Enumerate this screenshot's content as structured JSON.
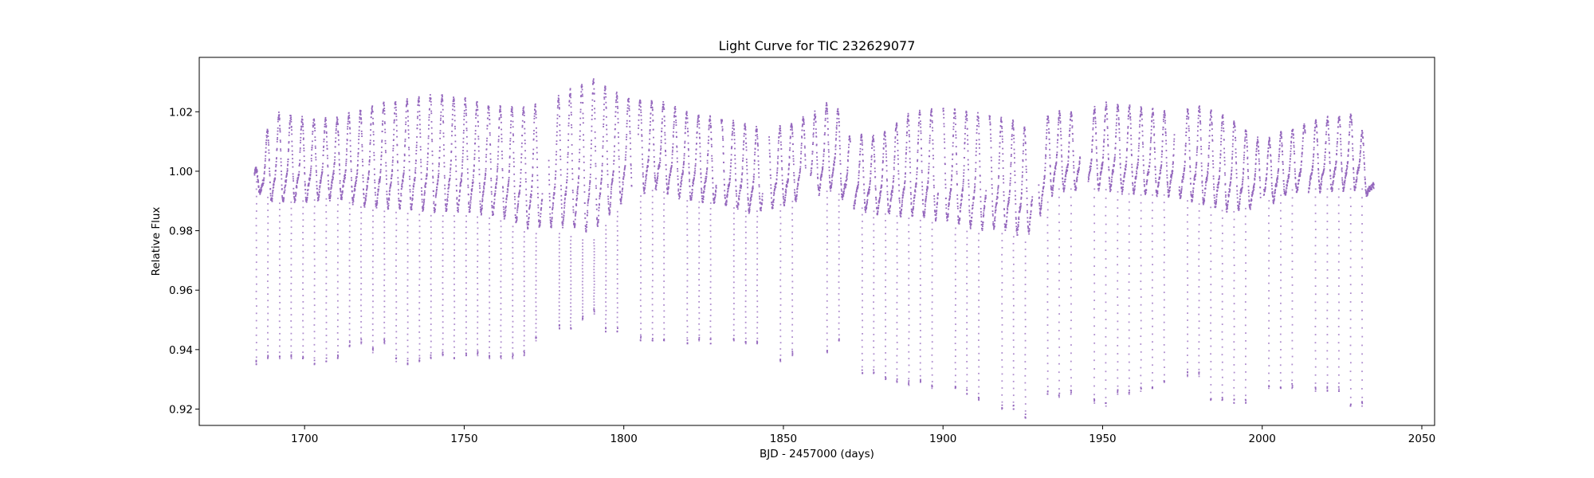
{
  "chart_data": {
    "type": "scatter",
    "title": "Light Curve for TIC 232629077",
    "xlabel": "BJD - 2457000 (days)",
    "ylabel": "Relative Flux",
    "xlim": [
      1667,
      2054
    ],
    "ylim": [
      0.9145,
      1.0383
    ],
    "xticks": [
      1700,
      1750,
      1800,
      1850,
      1900,
      1950,
      2000,
      2050
    ],
    "xtick_labels": [
      "1700",
      "1750",
      "1800",
      "1850",
      "1900",
      "1950",
      "2000",
      "2050"
    ],
    "yticks": [
      0.92,
      0.94,
      0.96,
      0.98,
      1.0,
      1.02
    ],
    "ytick_labels": [
      "0.92",
      "0.94",
      "0.96",
      "0.98",
      "1.00",
      "1.02"
    ],
    "grid": false,
    "legend": "none",
    "color": "#9467bd",
    "series": [
      {
        "x_start": 1684.3,
        "x_end": 2035.0,
        "gaps": [
          [
            1774.5,
            1776.5
          ],
          [
            1802.5,
            1804.5
          ],
          [
            1829.0,
            1830.5
          ],
          [
            1843.5,
            1845.5
          ],
          [
            1857.0,
            1858.5
          ],
          [
            1871.0,
            1872.0
          ],
          [
            1898.5,
            1900.0
          ],
          [
            1913.5,
            1914.5
          ],
          [
            1928.0,
            1930.0
          ],
          [
            1943.0,
            1945.5
          ],
          [
            1972.5,
            1974.0
          ],
          [
            1999.5,
            2000.5
          ],
          [
            2013.5,
            2014.5
          ]
        ],
        "envelope": [
          {
            "x": 1684.5,
            "max": 1.0,
            "min": 0.993
          },
          {
            "x": 1690,
            "max": 1.02,
            "min": 0.985
          },
          {
            "x": 1700,
            "max": 1.018,
            "min": 0.986
          },
          {
            "x": 1710,
            "max": 1.018,
            "min": 0.987
          },
          {
            "x": 1720,
            "max": 1.022,
            "min": 0.983
          },
          {
            "x": 1730,
            "max": 1.024,
            "min": 0.982
          },
          {
            "x": 1740,
            "max": 1.026,
            "min": 0.981
          },
          {
            "x": 1750,
            "max": 1.025,
            "min": 0.981
          },
          {
            "x": 1760,
            "max": 1.022,
            "min": 0.98
          },
          {
            "x": 1770,
            "max": 1.022,
            "min": 0.975
          },
          {
            "x": 1780,
            "max": 1.026,
            "min": 0.975
          },
          {
            "x": 1790,
            "max": 1.032,
            "min": 0.972
          },
          {
            "x": 1800,
            "max": 1.025,
            "min": 0.985
          },
          {
            "x": 1810,
            "max": 1.024,
            "min": 0.99
          },
          {
            "x": 1820,
            "max": 1.02,
            "min": 0.986
          },
          {
            "x": 1830,
            "max": 1.018,
            "min": 0.985
          },
          {
            "x": 1840,
            "max": 1.015,
            "min": 0.982
          },
          {
            "x": 1850,
            "max": 1.015,
            "min": 0.985
          },
          {
            "x": 1860,
            "max": 1.02,
            "min": 0.988
          },
          {
            "x": 1866,
            "max": 1.025,
            "min": 0.99
          },
          {
            "x": 1870,
            "max": 1.012,
            "min": 0.985
          },
          {
            "x": 1880,
            "max": 1.012,
            "min": 0.982
          },
          {
            "x": 1890,
            "max": 1.02,
            "min": 0.98
          },
          {
            "x": 1900,
            "max": 1.022,
            "min": 0.978
          },
          {
            "x": 1910,
            "max": 1.02,
            "min": 0.975
          },
          {
            "x": 1920,
            "max": 1.018,
            "min": 0.975
          },
          {
            "x": 1926,
            "max": 1.015,
            "min": 0.972
          },
          {
            "x": 1935,
            "max": 1.02,
            "min": 0.99
          },
          {
            "x": 1945,
            "max": 1.02,
            "min": 0.99
          },
          {
            "x": 1950,
            "max": 1.023,
            "min": 0.99
          },
          {
            "x": 1960,
            "max": 1.022,
            "min": 0.988
          },
          {
            "x": 1970,
            "max": 1.02,
            "min": 0.988
          },
          {
            "x": 1980,
            "max": 1.022,
            "min": 0.985
          },
          {
            "x": 1990,
            "max": 1.018,
            "min": 0.982
          },
          {
            "x": 2000,
            "max": 1.01,
            "min": 0.985
          },
          {
            "x": 2010,
            "max": 1.015,
            "min": 0.99
          },
          {
            "x": 2020,
            "max": 1.018,
            "min": 0.99
          },
          {
            "x": 2030,
            "max": 1.02,
            "min": 0.99
          },
          {
            "x": 2035,
            "max": 0.995,
            "min": 0.99
          }
        ],
        "eclipses": [
          {
            "x": 1684.9,
            "min": 0.935
          },
          {
            "x": 1688.5,
            "min": 0.937
          },
          {
            "x": 1692.2,
            "min": 0.937
          },
          {
            "x": 1695.8,
            "min": 0.937
          },
          {
            "x": 1699.5,
            "min": 0.937
          },
          {
            "x": 1703.1,
            "min": 0.935
          },
          {
            "x": 1706.8,
            "min": 0.936
          },
          {
            "x": 1710.4,
            "min": 0.937
          },
          {
            "x": 1714.1,
            "min": 0.941
          },
          {
            "x": 1717.7,
            "min": 0.942
          },
          {
            "x": 1721.4,
            "min": 0.939
          },
          {
            "x": 1725.0,
            "min": 0.942
          },
          {
            "x": 1728.7,
            "min": 0.936
          },
          {
            "x": 1732.3,
            "min": 0.935
          },
          {
            "x": 1736.0,
            "min": 0.936
          },
          {
            "x": 1739.6,
            "min": 0.937
          },
          {
            "x": 1743.3,
            "min": 0.938
          },
          {
            "x": 1746.9,
            "min": 0.937
          },
          {
            "x": 1750.6,
            "min": 0.938
          },
          {
            "x": 1754.2,
            "min": 0.938
          },
          {
            "x": 1757.9,
            "min": 0.937
          },
          {
            "x": 1761.5,
            "min": 0.937
          },
          {
            "x": 1765.2,
            "min": 0.937
          },
          {
            "x": 1768.8,
            "min": 0.938
          },
          {
            "x": 1772.5,
            "min": 0.943
          },
          {
            "x": 1779.8,
            "min": 0.947
          },
          {
            "x": 1783.4,
            "min": 0.947
          },
          {
            "x": 1787.1,
            "min": 0.95
          },
          {
            "x": 1790.7,
            "min": 0.952
          },
          {
            "x": 1794.4,
            "min": 0.946
          },
          {
            "x": 1798.0,
            "min": 0.946
          },
          {
            "x": 1805.3,
            "min": 0.943
          },
          {
            "x": 1809.0,
            "min": 0.943
          },
          {
            "x": 1812.6,
            "min": 0.943
          },
          {
            "x": 1819.9,
            "min": 0.942
          },
          {
            "x": 1823.6,
            "min": 0.943
          },
          {
            "x": 1827.2,
            "min": 0.942
          },
          {
            "x": 1834.5,
            "min": 0.943
          },
          {
            "x": 1838.2,
            "min": 0.942
          },
          {
            "x": 1841.8,
            "min": 0.942
          },
          {
            "x": 1849.1,
            "min": 0.936
          },
          {
            "x": 1852.8,
            "min": 0.938
          },
          {
            "x": 1863.7,
            "min": 0.939
          },
          {
            "x": 1867.4,
            "min": 0.943
          },
          {
            "x": 1874.7,
            "min": 0.932
          },
          {
            "x": 1878.3,
            "min": 0.932
          },
          {
            "x": 1882.0,
            "min": 0.93
          },
          {
            "x": 1885.6,
            "min": 0.929
          },
          {
            "x": 1889.3,
            "min": 0.928
          },
          {
            "x": 1892.9,
            "min": 0.929
          },
          {
            "x": 1896.6,
            "min": 0.927
          },
          {
            "x": 1903.9,
            "min": 0.927
          },
          {
            "x": 1907.5,
            "min": 0.925
          },
          {
            "x": 1911.2,
            "min": 0.923
          },
          {
            "x": 1918.5,
            "min": 0.92
          },
          {
            "x": 1922.1,
            "min": 0.92
          },
          {
            "x": 1925.8,
            "min": 0.917
          },
          {
            "x": 1932.8,
            "min": 0.925
          },
          {
            "x": 1936.4,
            "min": 0.924
          },
          {
            "x": 1940.1,
            "min": 0.925
          },
          {
            "x": 1947.4,
            "min": 0.922
          },
          {
            "x": 1951.0,
            "min": 0.921
          },
          {
            "x": 1954.7,
            "min": 0.925
          },
          {
            "x": 1958.3,
            "min": 0.925
          },
          {
            "x": 1962.0,
            "min": 0.926
          },
          {
            "x": 1965.6,
            "min": 0.927
          },
          {
            "x": 1969.3,
            "min": 0.929
          },
          {
            "x": 1976.6,
            "min": 0.931
          },
          {
            "x": 1980.2,
            "min": 0.931
          },
          {
            "x": 1983.9,
            "min": 0.923
          },
          {
            "x": 1987.5,
            "min": 0.923
          },
          {
            "x": 1991.2,
            "min": 0.922
          },
          {
            "x": 1994.8,
            "min": 0.922
          },
          {
            "x": 2002.1,
            "min": 0.927
          },
          {
            "x": 2005.8,
            "min": 0.927
          },
          {
            "x": 2009.4,
            "min": 0.927
          },
          {
            "x": 2016.7,
            "min": 0.926
          },
          {
            "x": 2020.4,
            "min": 0.926
          },
          {
            "x": 2024.0,
            "min": 0.926
          },
          {
            "x": 2027.7,
            "min": 0.921
          },
          {
            "x": 2031.3,
            "min": 0.921
          }
        ]
      }
    ]
  }
}
